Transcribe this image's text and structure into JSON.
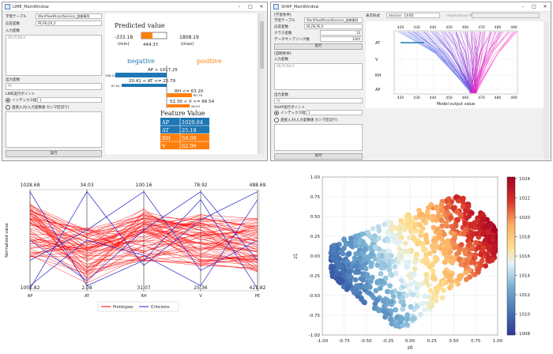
{
  "lime_window": {
    "title": "LIME_MainWindow",
    "learn_table_label": "学習テーブル",
    "learn_table_value": "WorkflowWizardSession_訓練事例",
    "target_label": "応答変数",
    "target_value": "PE,PE,QP_0",
    "input_label": "入力変数",
    "input_value": "AP,AT,RH,V",
    "output_label": "出力変数",
    "output_value": "PE",
    "lime_point_label": "LIME実行ポイント",
    "radio1_label": "インデックス指定",
    "radio1_value": "1",
    "radio2_label": "直接入力(入力変数値 カンマ区切り)",
    "run_label": "実行",
    "pred_title": "Predicted value",
    "pred_min": "-333.18",
    "pred_min_caption": "(min)",
    "pred_value": "444.37",
    "pred_max": "1808.19",
    "pred_max_caption": "(max)",
    "negative": "negative",
    "positive": "positive",
    "conds": [
      {
        "text": "AP > 1017.25",
        "val": "108.22"
      },
      {
        "text": "20.41 < AT <= 25.79",
        "val": "87.81"
      },
      {
        "text": "RH <= 63.20",
        "val": "60.78"
      },
      {
        "text": "52.30 < V <= 66.54",
        "val": "58.53"
      }
    ],
    "fv_title": "Feature Value",
    "fv_rows": [
      {
        "name": "AP",
        "value": "1020.04"
      },
      {
        "name": "AT",
        "value": "25.18"
      },
      {
        "name": "RH",
        "value": "59.08"
      },
      {
        "name": "V",
        "value": "62.96"
      }
    ]
  },
  "shap_window": {
    "title": "SHAP_MainWindow",
    "section_learn": "[学習条件]",
    "learn_table_label": "学習テーブル",
    "learn_table_value": "WorkflowWizardSession_訓練事例",
    "target_label": "応答変数",
    "target_value": "PE,PE,PE,0",
    "class_label": "クラス名数",
    "class_value": "10",
    "sample_label": "データサンプリング数",
    "sample_value": "1000",
    "run_label_top": "実行",
    "section_explain": "[説明条件]",
    "input_label": "入力変数",
    "input_value": "AP,AT,RH,V",
    "output_label": "出力変数",
    "output_value": "PE",
    "shap_point_label": "SHAP実行ポイント",
    "radio1_label": "インデックス指定",
    "radio1_value": "1",
    "radio2_label": "直接入力(入力変数値 カンマ区切り)",
    "run_label": "実行",
    "disp_label": "表示形式",
    "disp_value": "decision 【木特】",
    "other_label": "dependence 特徴",
    "top_ticks": [
      "420",
      "430",
      "440",
      "450",
      "460",
      "470",
      "480",
      "490"
    ],
    "bottom_ticks": [
      "420",
      "430",
      "440",
      "450",
      "460",
      "470",
      "480",
      "490"
    ],
    "features": [
      "AT",
      "V",
      "RH",
      "AP"
    ],
    "xlabel": "Model output value"
  },
  "parallel_plot": {
    "ylabel": "Normalized value",
    "axes": [
      "AP",
      "AT",
      "RH",
      "V",
      "PE"
    ],
    "top_labels": [
      "1028.68",
      "34.03",
      "100.16",
      "78.92",
      "488.69"
    ],
    "bottom_labels": [
      "1001.82",
      "2.08",
      "31.07",
      "25.36",
      "421.82"
    ],
    "legend": [
      "Prototypes",
      "Criticisms"
    ],
    "colors": {
      "prototypes": "#ff0000",
      "criticisms": "#2222cc"
    }
  },
  "scatter_plot": {
    "xlabel": "z0",
    "ylabel": "z1",
    "xticks": [
      "-1.00",
      "-0.75",
      "-0.50",
      "-0.25",
      "0.00",
      "0.25",
      "0.50",
      "0.75",
      "1.00"
    ],
    "yticks": [
      "1.00",
      "0.75",
      "0.50",
      "0.25",
      "0.00",
      "-0.25",
      "-0.50",
      "-0.75",
      "-1.00"
    ],
    "cbar_ticks": [
      "1024",
      "1022",
      "1020",
      "1018",
      "1016",
      "1014",
      "1012",
      "1010",
      "1008"
    ]
  }
}
